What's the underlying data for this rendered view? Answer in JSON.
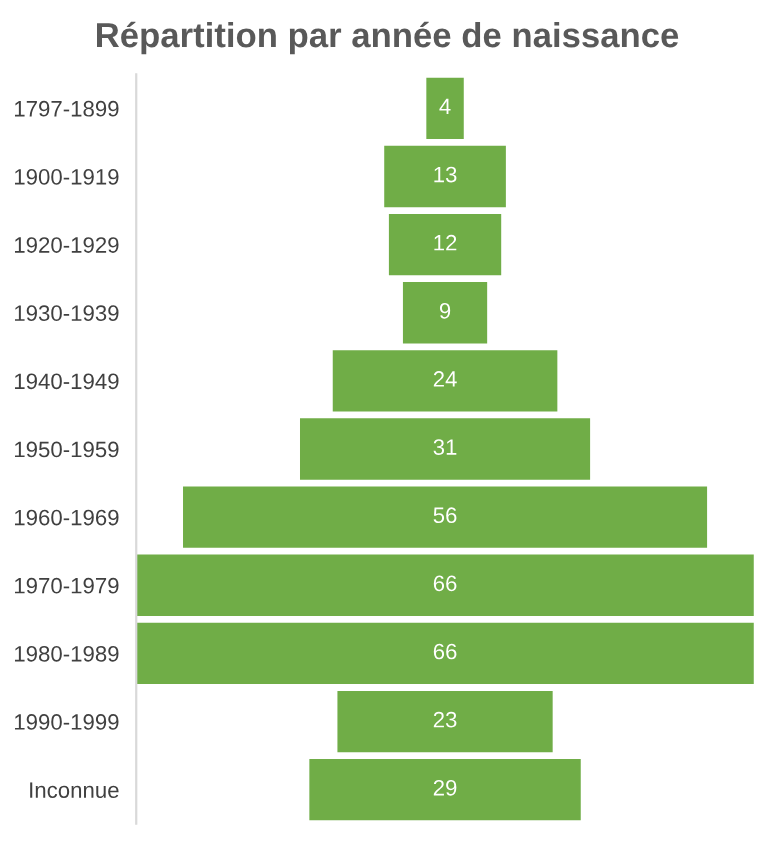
{
  "chart_data": {
    "type": "other",
    "title": "Répartition par année de naissance",
    "categories": [
      "1797-1899",
      "1900-1919",
      "1920-1929",
      "1930-1939",
      "1940-1949",
      "1950-1959",
      "1960-1969",
      "1970-1979",
      "1980-1989",
      "1990-1999",
      "Inconnue"
    ],
    "values": [
      4,
      13,
      12,
      9,
      24,
      31,
      56,
      66,
      66,
      23,
      29
    ],
    "color": "#70ad47",
    "data_labels": true
  }
}
